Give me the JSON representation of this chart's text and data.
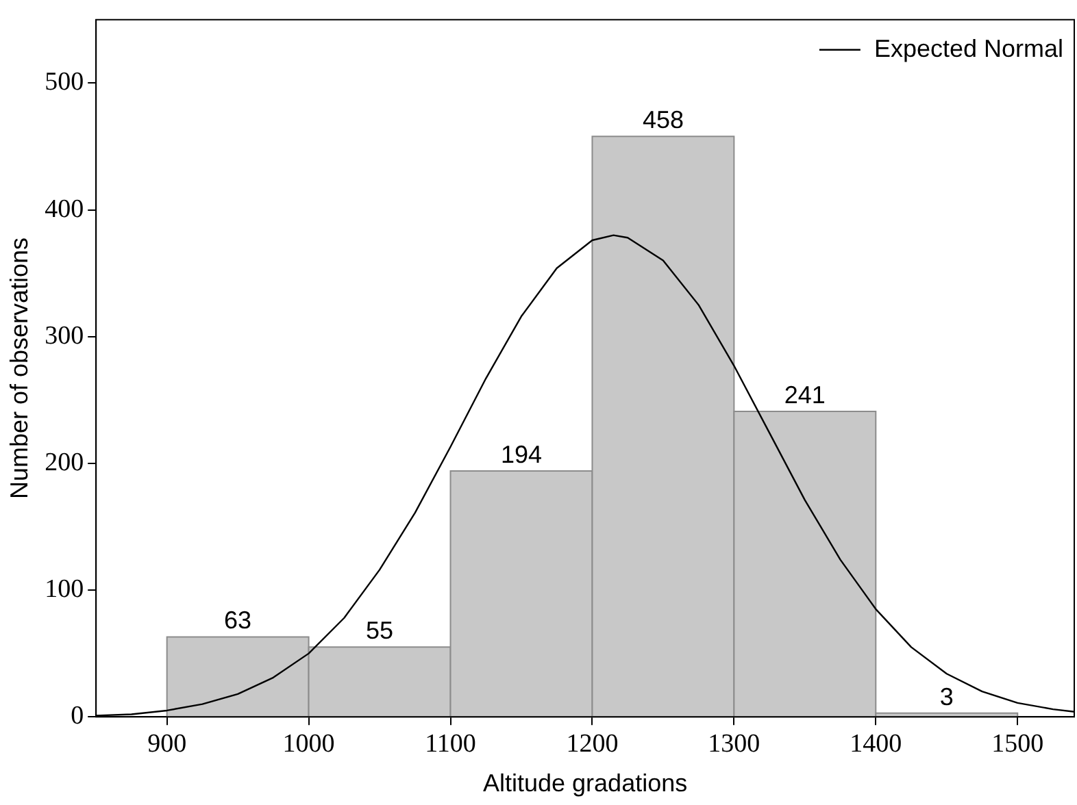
{
  "chart_data": {
    "type": "histogram",
    "xlabel": "Altitude gradations",
    "ylabel": "Number of observations",
    "bins": [
      900,
      1000,
      1100,
      1200,
      1300,
      1400,
      1500
    ],
    "values": [
      63,
      55,
      194,
      458,
      241,
      3
    ],
    "color": "#c8c8c8",
    "value_labels": [
      "63",
      "55",
      "194",
      "458",
      "241",
      "3"
    ],
    "series": [
      {
        "name": "Expected Normal",
        "type": "line",
        "color": "#000000",
        "x": [
          850,
          875,
          900,
          925,
          950,
          975,
          1000,
          1025,
          1050,
          1075,
          1100,
          1125,
          1150,
          1175,
          1200,
          1215,
          1225,
          1250,
          1275,
          1300,
          1325,
          1350,
          1375,
          1400,
          1425,
          1450,
          1475,
          1500,
          1525,
          1540
        ],
        "values": [
          1,
          2,
          5,
          10,
          18,
          31,
          50,
          78,
          116,
          161,
          213,
          267,
          316,
          354,
          376,
          380,
          378,
          360,
          325,
          277,
          224,
          171,
          124,
          85,
          55,
          34,
          20,
          11,
          6,
          4
        ]
      }
    ],
    "xlim": [
      850,
      1540
    ],
    "xticks": [
      900,
      1000,
      1100,
      1200,
      1300,
      1400,
      1500
    ],
    "ylim": [
      0,
      550
    ],
    "yticks": [
      0,
      100,
      200,
      300,
      400,
      500
    ],
    "grid": false,
    "legend": "top right",
    "marker": "none",
    "line_style": "solid"
  }
}
